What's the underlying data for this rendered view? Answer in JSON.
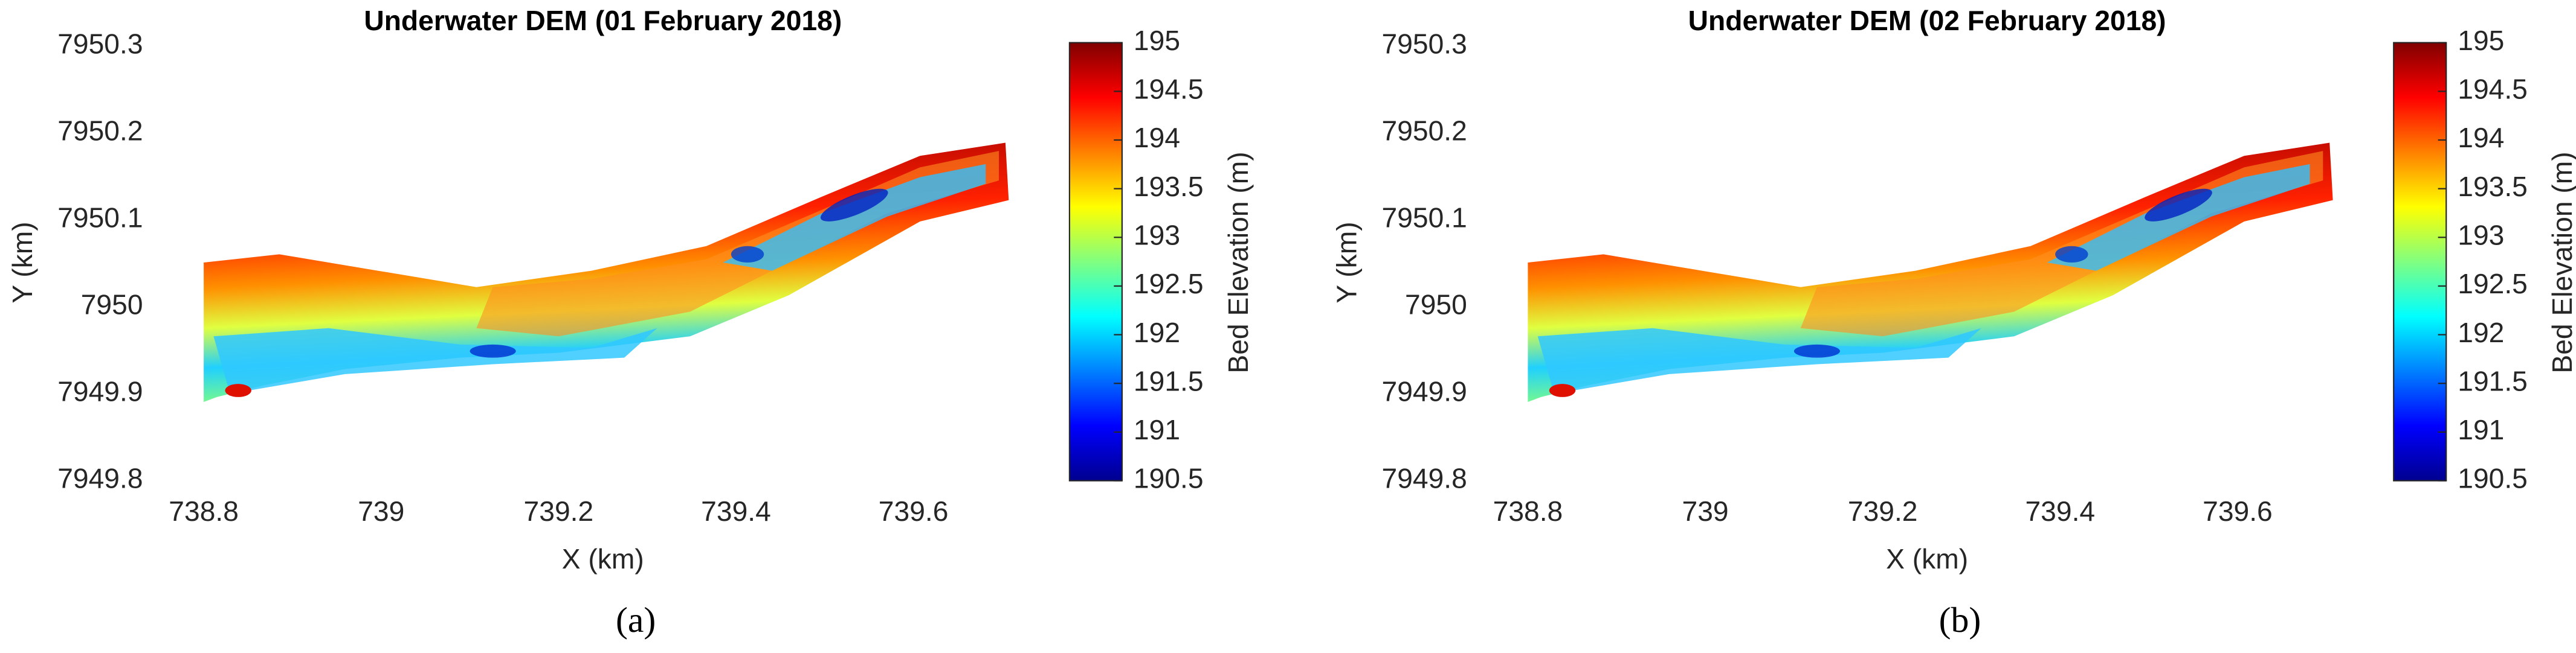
{
  "chart_data": [
    {
      "type": "heatmap",
      "title": "Underwater DEM (01 February 2018)",
      "xlabel": "X (km)",
      "ylabel": "Y (km)",
      "xlim": [
        738.75,
        739.7
      ],
      "xticks": [
        738.8,
        739,
        739.2,
        739.4,
        739.6
      ],
      "ylim": [
        7949.8,
        7950.3
      ],
      "yticks": [
        7949.8,
        7949.9,
        7950,
        7950.1,
        7950.2,
        7950.3
      ],
      "colorbar": {
        "label": "Bed Elevation (m)",
        "lim": [
          190.5,
          195
        ],
        "ticks": [
          190.5,
          191,
          191.5,
          192,
          192.5,
          193,
          193.5,
          194,
          194.5,
          195
        ],
        "colors": [
          "#00008f",
          "#0000ff",
          "#0080ff",
          "#00ffff",
          "#80ff80",
          "#ffff00",
          "#ff8000",
          "#ff0000",
          "#800000"
        ]
      },
      "panel_label": "(a)"
    },
    {
      "type": "heatmap",
      "title": "Underwater DEM (02 February 2018)",
      "xlabel": "X (km)",
      "ylabel": "Y (km)",
      "xlim": [
        738.75,
        739.7
      ],
      "xticks": [
        738.8,
        739,
        739.2,
        739.4,
        739.6
      ],
      "ylim": [
        7949.8,
        7950.3
      ],
      "yticks": [
        7949.8,
        7949.9,
        7950,
        7950.1,
        7950.2,
        7950.3
      ],
      "colorbar": {
        "label": "Bed Elevation (m)",
        "lim": [
          190.5,
          195
        ],
        "ticks": [
          190.5,
          191,
          191.5,
          192,
          192.5,
          193,
          193.5,
          194,
          194.5,
          195
        ],
        "colors": [
          "#00008f",
          "#0000ff",
          "#0080ff",
          "#00ffff",
          "#80ff80",
          "#ffff00",
          "#ff8000",
          "#ff0000",
          "#800000"
        ]
      },
      "panel_label": "(b)"
    }
  ]
}
